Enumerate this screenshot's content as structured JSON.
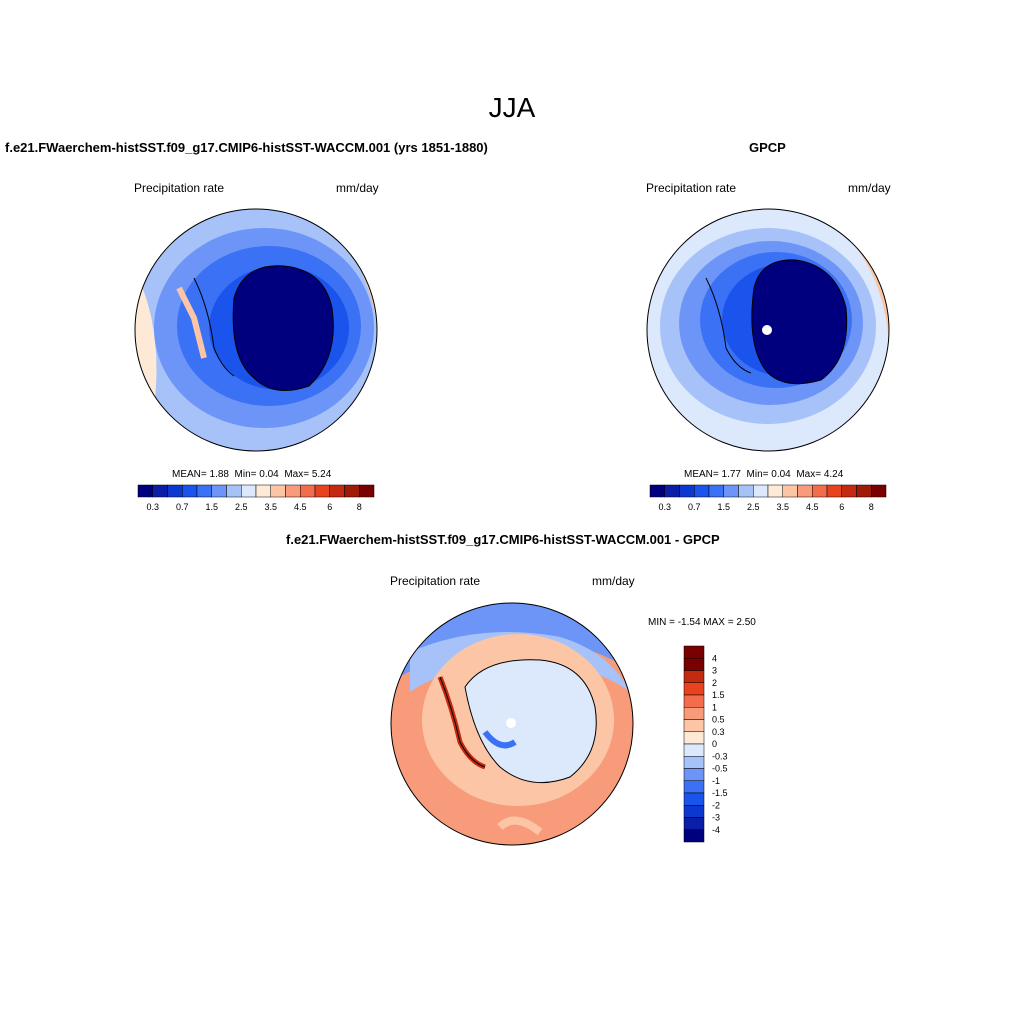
{
  "season": "JJA",
  "colors": {
    "abs_scale": [
      "#00007f",
      "#0a1fa6",
      "#0d38cf",
      "#1b54ec",
      "#3a71f5",
      "#6c95f7",
      "#a6c2f8",
      "#dce8fb",
      "#fde9d6",
      "#fcc6a6",
      "#f89b7a",
      "#f36d4c",
      "#e9421e",
      "#c42a10",
      "#a01a08",
      "#7a0000"
    ],
    "diff_scale": [
      "#00007f",
      "#0a1fa6",
      "#0d38cf",
      "#1b54ec",
      "#3a71f5",
      "#6c95f7",
      "#a6c2f8",
      "#dce8fb",
      "#fde9d6",
      "#fcc6a6",
      "#f89b7a",
      "#f36d4c",
      "#e9421e",
      "#c42a10",
      "#7a0000"
    ],
    "antarctica_model": "#00007f",
    "antarctica_obs": "#00007f",
    "ocean_ring": "#3a71f5",
    "diff_ocean": "#f89b7a",
    "diff_land": "#dce8fb"
  },
  "panels": {
    "model": {
      "title": "f.e21.FWaerchem-histSST.f09_g17.CMIP6-histSST-WACCM.001 (yrs 1851-1880)",
      "left_label": "Precipitation rate",
      "right_label": "mm/day",
      "stats": {
        "mean": "1.88",
        "min": "0.04",
        "max": "5.24"
      },
      "stats_labels": {
        "mean": "MEAN=",
        "min": "Min=",
        "max": "Max="
      },
      "colorbar_ticks": [
        "0.3",
        "0.7",
        "1.5",
        "2.5",
        "3.5",
        "4.5",
        "6",
        "8"
      ]
    },
    "obs": {
      "title": "GPCP",
      "left_label": "Precipitation rate",
      "right_label": "mm/day",
      "stats": {
        "mean": "1.77",
        "min": "0.04",
        "max": "4.24"
      },
      "stats_labels": {
        "mean": "MEAN=",
        "min": "Min=",
        "max": "Max="
      },
      "colorbar_ticks": [
        "0.3",
        "0.7",
        "1.5",
        "2.5",
        "3.5",
        "4.5",
        "6",
        "8"
      ]
    },
    "diff": {
      "title": "f.e21.FWaerchem-histSST.f09_g17.CMIP6-histSST-WACCM.001 - GPCP",
      "left_label": "Precipitation rate",
      "right_label": "mm/day",
      "minmax_text": "MIN =  -1.54 MAX =   2.50",
      "colorbar_ticks": [
        "4",
        "3",
        "2",
        "1.5",
        "1",
        "0.5",
        "0.3",
        "0",
        "-0.3",
        "-0.5",
        "-1",
        "-1.5",
        "-2",
        "-3",
        "-4"
      ]
    }
  }
}
